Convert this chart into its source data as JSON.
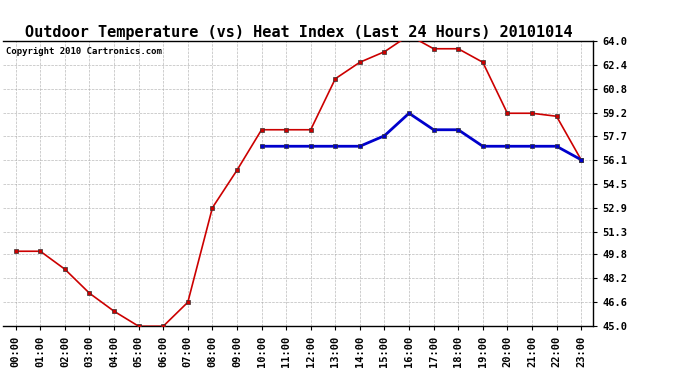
{
  "title": "Outdoor Temperature (vs) Heat Index (Last 24 Hours) 20101014",
  "copyright": "Copyright 2010 Cartronics.com",
  "hours": [
    "00:00",
    "01:00",
    "02:00",
    "03:00",
    "04:00",
    "05:00",
    "06:00",
    "07:00",
    "08:00",
    "09:00",
    "10:00",
    "11:00",
    "12:00",
    "13:00",
    "14:00",
    "15:00",
    "16:00",
    "17:00",
    "18:00",
    "19:00",
    "20:00",
    "21:00",
    "22:00",
    "23:00"
  ],
  "temp": [
    50.0,
    50.0,
    48.8,
    47.2,
    46.0,
    45.0,
    45.0,
    46.6,
    52.9,
    55.4,
    58.1,
    58.1,
    58.1,
    61.5,
    62.6,
    63.3,
    64.4,
    63.5,
    63.5,
    62.6,
    59.2,
    59.2,
    59.0,
    56.1
  ],
  "heat_index": [
    null,
    null,
    null,
    null,
    null,
    null,
    null,
    null,
    null,
    null,
    57.0,
    57.0,
    57.0,
    57.0,
    57.0,
    57.7,
    59.2,
    58.1,
    58.1,
    57.0,
    57.0,
    57.0,
    57.0,
    56.1
  ],
  "ylim": [
    45.0,
    64.0
  ],
  "yticks": [
    45.0,
    46.6,
    48.2,
    49.8,
    51.3,
    52.9,
    54.5,
    56.1,
    57.7,
    59.2,
    60.8,
    62.4,
    64.0
  ],
  "temp_color": "#cc0000",
  "heat_index_color": "#0000cc",
  "background_color": "#ffffff",
  "grid_color": "#aaaaaa",
  "title_fontsize": 11,
  "tick_fontsize": 7.5,
  "copyright_fontsize": 6.5
}
